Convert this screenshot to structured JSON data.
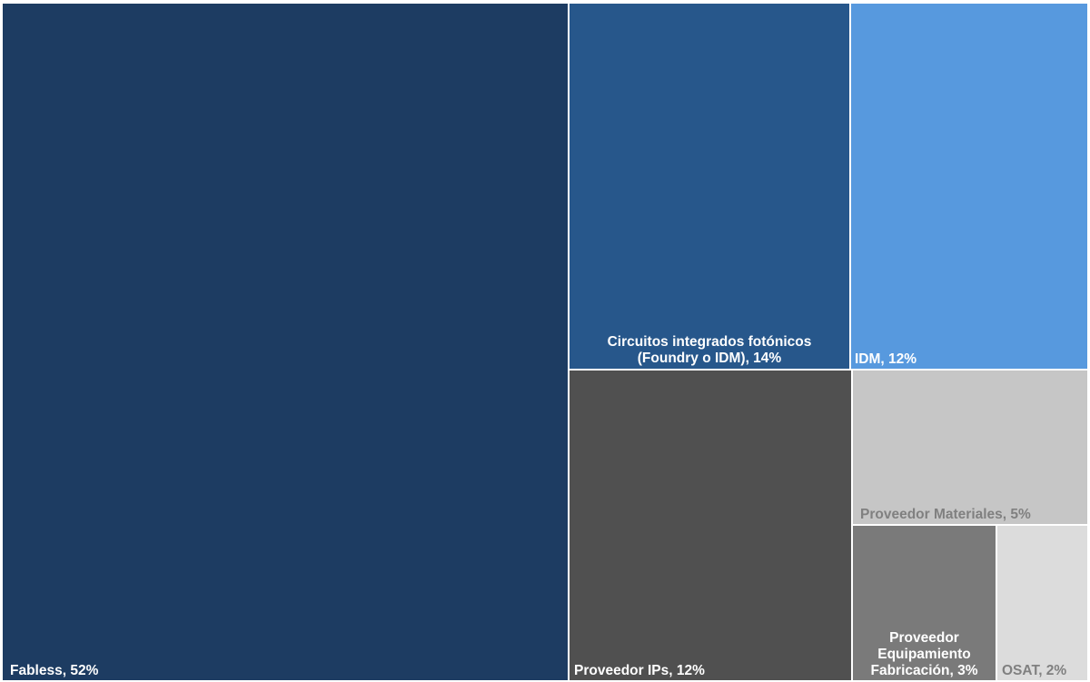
{
  "chart_data": {
    "type": "treemap",
    "title": "",
    "items": [
      {
        "name": "Fabless",
        "label": "Fabless, 52%",
        "value": 52,
        "color": "#1d3c62",
        "text_color": "#ffffff"
      },
      {
        "name": "Circuitos integrados fotónicos (Foundry o IDM)",
        "label_lines": [
          "Circuitos integrados fotónicos",
          "(Foundry o IDM), 14%"
        ],
        "value": 14,
        "color": "#27578b",
        "text_color": "#ffffff"
      },
      {
        "name": "IDM",
        "label": "IDM, 12%",
        "value": 12,
        "color": "#5799de",
        "text_color": "#ffffff"
      },
      {
        "name": "Proveedor IPs",
        "label": "Proveedor IPs, 12%",
        "value": 12,
        "color": "#505050",
        "text_color": "#ffffff"
      },
      {
        "name": "Proveedor Materiales",
        "label": "Proveedor Materiales, 5%",
        "value": 5,
        "color": "#c6c6c6",
        "text_color": "#808080"
      },
      {
        "name": "Proveedor Equipamiento Fabricación",
        "label_lines": [
          "Proveedor",
          "Equipamiento",
          "Fabricación, 3%"
        ],
        "value": 3,
        "color": "#7a7a7a",
        "text_color": "#ffffff"
      },
      {
        "name": "OSAT",
        "label": "OSAT, 2%",
        "value": 2,
        "color": "#dcdcdc",
        "text_color": "#808080"
      }
    ]
  }
}
